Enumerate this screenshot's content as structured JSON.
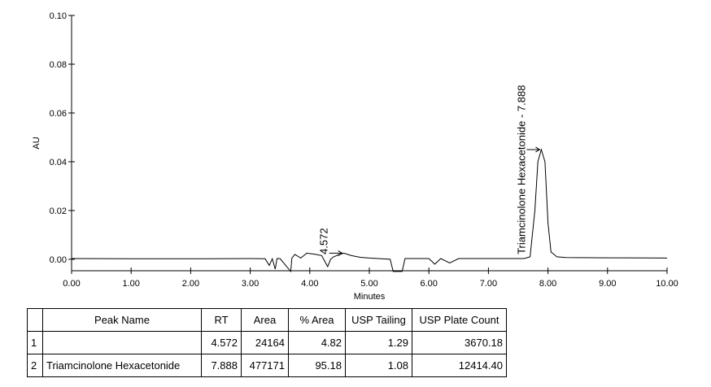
{
  "chart_data": {
    "type": "line",
    "xlabel": "Minutes",
    "ylabel": "AU",
    "color": "#000000",
    "x": [
      0,
      1,
      2,
      3,
      3.25,
      3.32,
      3.37,
      3.42,
      3.45,
      3.5,
      3.68,
      3.7,
      3.75,
      3.85,
      3.95,
      4.1,
      4.2,
      4.3,
      4.35,
      4.4,
      4.5,
      4.572,
      4.7,
      4.85,
      5.0,
      5.35,
      5.4,
      5.55,
      5.6,
      6.0,
      6.1,
      6.2,
      6.35,
      6.5,
      7.0,
      7.6,
      7.7,
      7.78,
      7.83,
      7.888,
      7.95,
      8.0,
      8.05,
      8.15,
      8.3,
      9.0,
      10.0
    ],
    "values": [
      0.0003,
      0.0002,
      0.0002,
      0.0003,
      0.0002,
      -0.0025,
      0.0002,
      -0.004,
      0.0003,
      0.0003,
      -0.005,
      0.0005,
      0.002,
      0.0005,
      0.0025,
      0.002,
      0.0015,
      -0.003,
      0.0,
      0.001,
      0.002,
      0.0025,
      0.0015,
      0.0008,
      0.0005,
      0.0,
      -0.005,
      -0.005,
      0.0003,
      0.0003,
      -0.002,
      0.0003,
      -0.0015,
      0.0003,
      0.0003,
      0.0003,
      0.001,
      0.02,
      0.04,
      0.045,
      0.04,
      0.015,
      0.003,
      0.001,
      0.0007,
      0.0006,
      0.0005
    ],
    "xlim": [
      0,
      10
    ],
    "ylim": [
      -0.0047,
      0.1
    ],
    "xticks": [
      {
        "value": 0,
        "label": "0.00"
      },
      {
        "value": 1,
        "label": "1.00"
      },
      {
        "value": 2,
        "label": "2.00"
      },
      {
        "value": 3,
        "label": "3.00"
      },
      {
        "value": 4,
        "label": "4.00"
      },
      {
        "value": 5,
        "label": "5.00"
      },
      {
        "value": 6,
        "label": "6.00"
      },
      {
        "value": 7,
        "label": "7.00"
      },
      {
        "value": 8,
        "label": "8.00"
      },
      {
        "value": 9,
        "label": "9.00"
      },
      {
        "value": 10,
        "label": "10.00"
      }
    ],
    "yticks": [
      {
        "value": 0,
        "label": "0.00"
      },
      {
        "value": 0.02,
        "label": "0.02"
      },
      {
        "value": 0.04,
        "label": "0.04"
      },
      {
        "value": 0.06,
        "label": "0.06"
      },
      {
        "value": 0.08,
        "label": "0.08"
      },
      {
        "value": 0.1,
        "label": "0.10"
      }
    ],
    "annotations": [
      {
        "text": "4.572",
        "x": 4.572,
        "y": 0.0025
      },
      {
        "text": "Triamcinolone Hexacetonide - 7.888",
        "x": 7.888,
        "y": 0.045
      }
    ]
  },
  "table": {
    "header": [
      null,
      "Peak Name",
      "RT",
      "Area",
      "% Area",
      "USP Tailing",
      "USP Plate Count"
    ],
    "rows": [
      [
        "1",
        null,
        "4.572",
        "24164",
        "4.82",
        "1.29",
        "3670.18"
      ],
      [
        "2",
        "Triamcinolone Hexacetonide",
        "7.888",
        "477171",
        "95.18",
        "1.08",
        "12414.40"
      ]
    ]
  }
}
